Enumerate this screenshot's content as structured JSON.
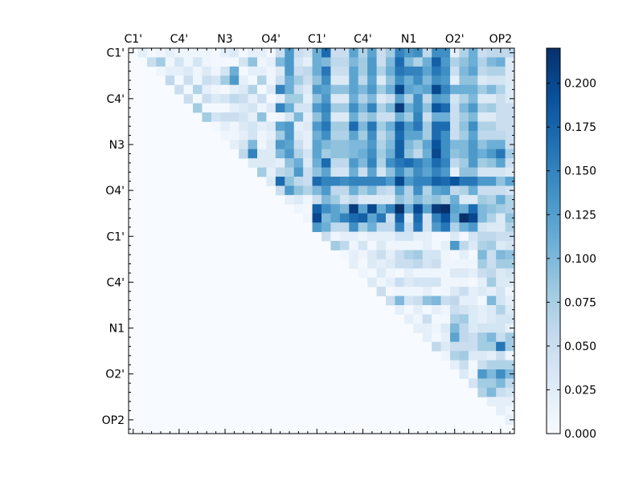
{
  "chart_data": {
    "type": "heatmap",
    "title": "",
    "xlabel": "",
    "ylabel": "",
    "size": 42,
    "x_tick_labels": [
      "C1'",
      "C4'",
      "N3",
      "O4'",
      "C1'",
      "C4'",
      "N1",
      "O2'",
      "OP2"
    ],
    "y_tick_labels": [
      "C1'",
      "C4'",
      "N3",
      "O4'",
      "C1'",
      "C4'",
      "N1",
      "O2'",
      "OP2"
    ],
    "tick_step": 5,
    "colormap": "Blues",
    "colormap_stops": [
      "#f7fbff",
      "#deebf7",
      "#c6dbef",
      "#9ecae1",
      "#6baed6",
      "#4292c6",
      "#2171b5",
      "#08519c",
      "#08306b"
    ],
    "value_range": [
      0.0,
      0.22
    ],
    "note_structure": "upper triangle only; row i lists values for columns i+1..41; diagonal and lower triangle are 0",
    "upper_triangle_rows": [
      [
        0.02,
        0.005,
        0.01,
        0.02,
        0.01,
        0.01,
        0.01,
        0.01,
        0.005,
        0.02,
        0.03,
        0.005,
        0.02,
        0.02,
        0.005,
        0.05,
        0.13,
        0.05,
        0.04,
        0.11,
        0.17,
        0.05,
        0.05,
        0.12,
        0.07,
        0.12,
        0.05,
        0.08,
        0.15,
        0.13,
        0.14,
        0.06,
        0.14,
        0.14,
        0.02,
        0.07,
        0.11,
        0.05,
        0.06,
        0.06,
        0.06
      ],
      [
        0.05,
        0.08,
        0.01,
        0.04,
        0.01,
        0.04,
        0.01,
        0.005,
        0.005,
        0.005,
        0.04,
        0.09,
        0.01,
        0.02,
        0.1,
        0.13,
        0.04,
        0.02,
        0.11,
        0.1,
        0.06,
        0.06,
        0.1,
        0.08,
        0.13,
        0.05,
        0.1,
        0.17,
        0.1,
        0.07,
        0.11,
        0.18,
        0.13,
        0.07,
        0.09,
        0.11,
        0.07,
        0.1,
        0.11,
        0.03
      ],
      [
        0.01,
        0.02,
        0.02,
        0.03,
        0.01,
        0.03,
        0.01,
        0.04,
        0.11,
        0.005,
        0.02,
        0.02,
        0.01,
        0.03,
        0.13,
        0.05,
        0.06,
        0.11,
        0.16,
        0.05,
        0.05,
        0.12,
        0.08,
        0.13,
        0.07,
        0.11,
        0.16,
        0.15,
        0.15,
        0.12,
        0.16,
        0.14,
        0.05,
        0.1,
        0.12,
        0.06,
        0.07,
        0.07,
        0.03
      ],
      [
        0.06,
        0.005,
        0.05,
        0.01,
        0.05,
        0.04,
        0.08,
        0.13,
        0.02,
        0.005,
        0.07,
        0.01,
        0.05,
        0.11,
        0.08,
        0.05,
        0.09,
        0.14,
        0.03,
        0.03,
        0.12,
        0.06,
        0.12,
        0.03,
        0.09,
        0.14,
        0.11,
        0.14,
        0.1,
        0.14,
        0.13,
        0.02,
        0.09,
        0.09,
        0.03,
        0.04,
        0.04,
        0.03
      ],
      [
        0.05,
        0.005,
        0.07,
        0.02,
        0.01,
        0.005,
        0.02,
        0.03,
        0.07,
        0.005,
        0.03,
        0.15,
        0.11,
        0.05,
        0.03,
        0.13,
        0.12,
        0.09,
        0.09,
        0.12,
        0.1,
        0.13,
        0.08,
        0.11,
        0.2,
        0.12,
        0.11,
        0.12,
        0.2,
        0.15,
        0.11,
        0.11,
        0.11,
        0.08,
        0.1,
        0.07,
        0.03
      ],
      [
        0.05,
        0.005,
        0.05,
        0.03,
        0.04,
        0.06,
        0.05,
        0.02,
        0.05,
        0.005,
        0.02,
        0.08,
        0.08,
        0.02,
        0.09,
        0.13,
        0.03,
        0.03,
        0.11,
        0.07,
        0.1,
        0.03,
        0.05,
        0.12,
        0.07,
        0.14,
        0.06,
        0.13,
        0.12,
        0.04,
        0.07,
        0.1,
        0.03,
        0.03,
        0.05,
        0.03
      ],
      [
        0.08,
        0.005,
        0.005,
        0.005,
        0.02,
        0.03,
        0.04,
        0.01,
        0.03,
        0.15,
        0.11,
        0.04,
        0.04,
        0.13,
        0.15,
        0.08,
        0.08,
        0.14,
        0.1,
        0.15,
        0.07,
        0.1,
        0.21,
        0.11,
        0.14,
        0.09,
        0.19,
        0.17,
        0.05,
        0.1,
        0.13,
        0.07,
        0.08,
        0.05,
        0.05
      ],
      [
        0.08,
        0.04,
        0.05,
        0.05,
        0.04,
        0.02,
        0.09,
        0.005,
        0.01,
        0.04,
        0.1,
        0.02,
        0.09,
        0.14,
        0.03,
        0.03,
        0.11,
        0.07,
        0.09,
        0.05,
        0.05,
        0.11,
        0.08,
        0.15,
        0.05,
        0.11,
        0.11,
        0.05,
        0.08,
        0.1,
        0.03,
        0.03,
        0.05,
        0.05
      ],
      [
        0.005,
        0.02,
        0.01,
        0.03,
        0.04,
        0.02,
        0.03,
        0.12,
        0.13,
        0.02,
        0.03,
        0.13,
        0.16,
        0.08,
        0.08,
        0.17,
        0.1,
        0.16,
        0.08,
        0.11,
        0.18,
        0.13,
        0.16,
        0.08,
        0.17,
        0.17,
        0.05,
        0.09,
        0.14,
        0.07,
        0.07,
        0.05,
        0.05
      ],
      [
        0.01,
        0.01,
        0.02,
        0.04,
        0.01,
        0.02,
        0.08,
        0.13,
        0.03,
        0.02,
        0.11,
        0.14,
        0.07,
        0.07,
        0.12,
        0.08,
        0.14,
        0.06,
        0.09,
        0.17,
        0.12,
        0.12,
        0.08,
        0.17,
        0.14,
        0.05,
        0.08,
        0.12,
        0.06,
        0.06,
        0.06,
        0.05
      ],
      [
        0.02,
        0.04,
        0.1,
        0.01,
        0.03,
        0.13,
        0.12,
        0.05,
        0.02,
        0.12,
        0.1,
        0.09,
        0.09,
        0.1,
        0.1,
        0.13,
        0.07,
        0.1,
        0.18,
        0.1,
        0.08,
        0.12,
        0.19,
        0.14,
        0.1,
        0.1,
        0.13,
        0.09,
        0.11,
        0.11,
        0.05
      ],
      [
        0.06,
        0.15,
        0.03,
        0.03,
        0.1,
        0.13,
        0.07,
        0.04,
        0.12,
        0.08,
        0.09,
        0.09,
        0.1,
        0.11,
        0.14,
        0.08,
        0.11,
        0.18,
        0.09,
        0.06,
        0.11,
        0.2,
        0.14,
        0.09,
        0.1,
        0.13,
        0.11,
        0.13,
        0.16,
        0.08
      ],
      [
        0.03,
        0.03,
        0.03,
        0.02,
        0.09,
        0.11,
        0.03,
        0.11,
        0.17,
        0.06,
        0.06,
        0.13,
        0.1,
        0.15,
        0.07,
        0.14,
        0.16,
        0.17,
        0.15,
        0.13,
        0.17,
        0.15,
        0.06,
        0.08,
        0.13,
        0.08,
        0.09,
        0.12,
        0.05
      ],
      [
        0.08,
        0.02,
        0.06,
        0.07,
        0.13,
        0.05,
        0.09,
        0.12,
        0.04,
        0.04,
        0.11,
        0.05,
        0.12,
        0.04,
        0.09,
        0.14,
        0.1,
        0.14,
        0.12,
        0.15,
        0.13,
        0.02,
        0.09,
        0.09,
        0.04,
        0.04,
        0.04,
        0.03
      ],
      [
        0.03,
        0.17,
        0.09,
        0.06,
        0.05,
        0.17,
        0.15,
        0.15,
        0.14,
        0.15,
        0.15,
        0.15,
        0.15,
        0.13,
        0.2,
        0.13,
        0.15,
        0.15,
        0.18,
        0.17,
        0.19,
        0.16,
        0.16,
        0.13,
        0.13,
        0.09,
        0.12
      ],
      [
        0.05,
        0.13,
        0.09,
        0.07,
        0.1,
        0.13,
        0.06,
        0.06,
        0.11,
        0.08,
        0.1,
        0.06,
        0.05,
        0.12,
        0.07,
        0.14,
        0.07,
        0.12,
        0.13,
        0.06,
        0.07,
        0.11,
        0.05,
        0.05,
        0.05,
        0.04
      ],
      [
        0.02,
        0.03,
        0.01,
        0.05,
        0.1,
        0.08,
        0.04,
        0.06,
        0.03,
        0.03,
        0.03,
        0.03,
        0.09,
        0.07,
        0.1,
        0.08,
        0.09,
        0.07,
        0.11,
        0.03,
        0.03,
        0.08,
        0.07,
        0.11,
        0.07
      ],
      [
        0.01,
        0.005,
        0.18,
        0.14,
        0.12,
        0.1,
        0.21,
        0.12,
        0.2,
        0.11,
        0.15,
        0.22,
        0.11,
        0.2,
        0.12,
        0.21,
        0.22,
        0.12,
        0.11,
        0.17,
        0.1,
        0.09,
        0.08,
        0.07
      ],
      [
        0.01,
        0.2,
        0.1,
        0.12,
        0.15,
        0.17,
        0.18,
        0.12,
        0.16,
        0.05,
        0.18,
        0.03,
        0.17,
        0.04,
        0.15,
        0.19,
        0.11,
        0.22,
        0.2,
        0.1,
        0.07,
        0.03,
        0.09
      ],
      [
        0.13,
        0.11,
        0.06,
        0.06,
        0.14,
        0.08,
        0.11,
        0.06,
        0.06,
        0.15,
        0.05,
        0.16,
        0.04,
        0.13,
        0.16,
        0.07,
        0.11,
        0.13,
        0.04,
        0.03,
        0.03,
        0.07
      ],
      [
        0.05,
        0.01,
        0.02,
        0.02,
        0.01,
        0.02,
        0.02,
        0.02,
        0.04,
        0.04,
        0.02,
        0.02,
        0.005,
        0.005,
        0.03,
        0.005,
        0.04,
        0.06,
        0.06,
        0.05,
        0.05
      ],
      [
        0.08,
        0.06,
        0.01,
        0.04,
        0.005,
        0.03,
        0.01,
        0.01,
        0.01,
        0.01,
        0.02,
        0.005,
        0.02,
        0.13,
        0.06,
        0.03,
        0.07,
        0.08,
        0.03,
        0.04
      ],
      [
        0.005,
        0.02,
        0.01,
        0.03,
        0.05,
        0.02,
        0.05,
        0.07,
        0.08,
        0.04,
        0.04,
        0.01,
        0.005,
        0.02,
        0.005,
        0.1,
        0.05,
        0.1,
        0.09
      ],
      [
        0.02,
        0.005,
        0.03,
        0.02,
        0.03,
        0.05,
        0.05,
        0.06,
        0.04,
        0.05,
        0.01,
        0.01,
        0.01,
        0.01,
        0.08,
        0.05,
        0.08,
        0.08
      ],
      [
        0.01,
        0.005,
        0.03,
        0.01,
        0.005,
        0.02,
        0.01,
        0.01,
        0.01,
        0.01,
        0.03,
        0.03,
        0.02,
        0.05,
        0.06,
        0.03,
        0.04
      ],
      [
        0.03,
        0.01,
        0.02,
        0.05,
        0.03,
        0.04,
        0.04,
        0.04,
        0.01,
        0.01,
        0.01,
        0.005,
        0.02,
        0.08,
        0.03,
        0.03
      ],
      [
        0.05,
        0.005,
        0.01,
        0.01,
        0.01,
        0.02,
        0.005,
        0.01,
        0.03,
        0.05,
        0.02,
        0.03,
        0.02,
        0.04,
        0.01
      ],
      [
        0.05,
        0.1,
        0.04,
        0.05,
        0.09,
        0.1,
        0.05,
        0.06,
        0.02,
        0.02,
        0.005,
        0.1,
        0.04,
        0.02
      ],
      [
        0.02,
        0.005,
        0.02,
        0.005,
        0.02,
        0.01,
        0.05,
        0.04,
        0.03,
        0.02,
        0.03,
        0.07,
        0.03
      ],
      [
        0.02,
        0.01,
        0.05,
        0.005,
        0.005,
        0.07,
        0.08,
        0.03,
        0.02,
        0.03,
        0.04,
        0.04
      ],
      [
        0.02,
        0.02,
        0.01,
        0.03,
        0.1,
        0.06,
        0.03,
        0.04,
        0.04,
        0.04,
        0.02
      ],
      [
        0.02,
        0.005,
        0.02,
        0.12,
        0.06,
        0.05,
        0.08,
        0.1,
        0.05,
        0.08
      ],
      [
        0.06,
        0.03,
        0.05,
        0.05,
        0.05,
        0.08,
        0.08,
        0.16,
        0.08
      ],
      [
        0.01,
        0.07,
        0.08,
        0.03,
        0.03,
        0.02,
        0.05,
        0.01
      ],
      [
        0.02,
        0.05,
        0.005,
        0.05,
        0.07,
        0.07,
        0.07
      ],
      [
        0.03,
        0.01,
        0.13,
        0.1,
        0.14,
        0.1
      ],
      [
        0.04,
        0.08,
        0.08,
        0.1,
        0.06
      ],
      [
        0.07,
        0.1,
        0.05,
        0.04
      ],
      [
        0.02,
        0.02,
        0.02
      ],
      [
        0.02,
        0.01
      ],
      [
        0.02
      ],
      []
    ],
    "colorbar": {
      "ticks": [
        0.0,
        0.025,
        0.05,
        0.075,
        0.1,
        0.125,
        0.15,
        0.175,
        0.2
      ],
      "tick_labels": [
        "0.000",
        "0.025",
        "0.050",
        "0.075",
        "0.100",
        "0.125",
        "0.150",
        "0.175",
        "0.200"
      ]
    }
  }
}
